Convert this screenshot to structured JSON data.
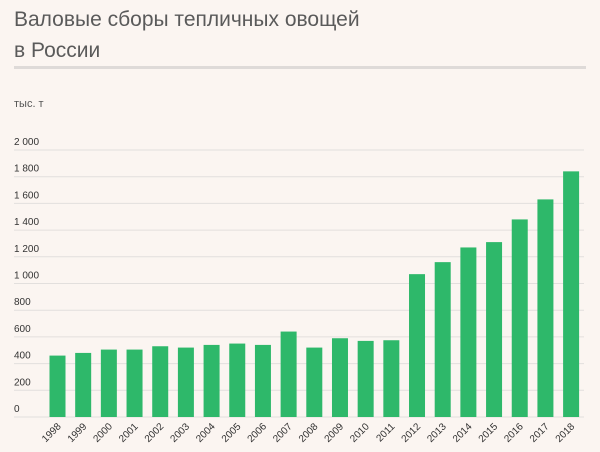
{
  "title_line1": "Валовые сборы тепличных овощей",
  "title_line2": "в России",
  "unit": "тыс. т",
  "colors": {
    "bar": "#2eb86a",
    "grid": "#e2dfdd",
    "background": "#fbf5f1",
    "title": "#5a5a5a"
  },
  "chart_data": {
    "type": "bar",
    "title": "Валовые сборы тепличных овощей в России",
    "ylabel": "тыс. т",
    "xlabel": "",
    "ylim": [
      0,
      2000
    ],
    "yticks": [
      0,
      200,
      400,
      600,
      800,
      1000,
      1200,
      1400,
      1600,
      1800,
      2000
    ],
    "ytick_labels": [
      "0",
      "200",
      "400",
      "600",
      "800",
      "1 000",
      "1 200",
      "1 400",
      "1 600",
      "1 800",
      "2 000"
    ],
    "grid": true,
    "categories": [
      "1998",
      "1999",
      "2000",
      "2001",
      "2002",
      "2003",
      "2004",
      "2005",
      "2006",
      "2007",
      "2008",
      "2009",
      "2010",
      "2011",
      "2012",
      "2013",
      "2014",
      "2015",
      "2016",
      "2017",
      "2018"
    ],
    "values": [
      460,
      480,
      505,
      505,
      530,
      520,
      540,
      550,
      540,
      640,
      520,
      590,
      570,
      575,
      1070,
      1160,
      1270,
      1310,
      1480,
      1630,
      1840
    ]
  }
}
